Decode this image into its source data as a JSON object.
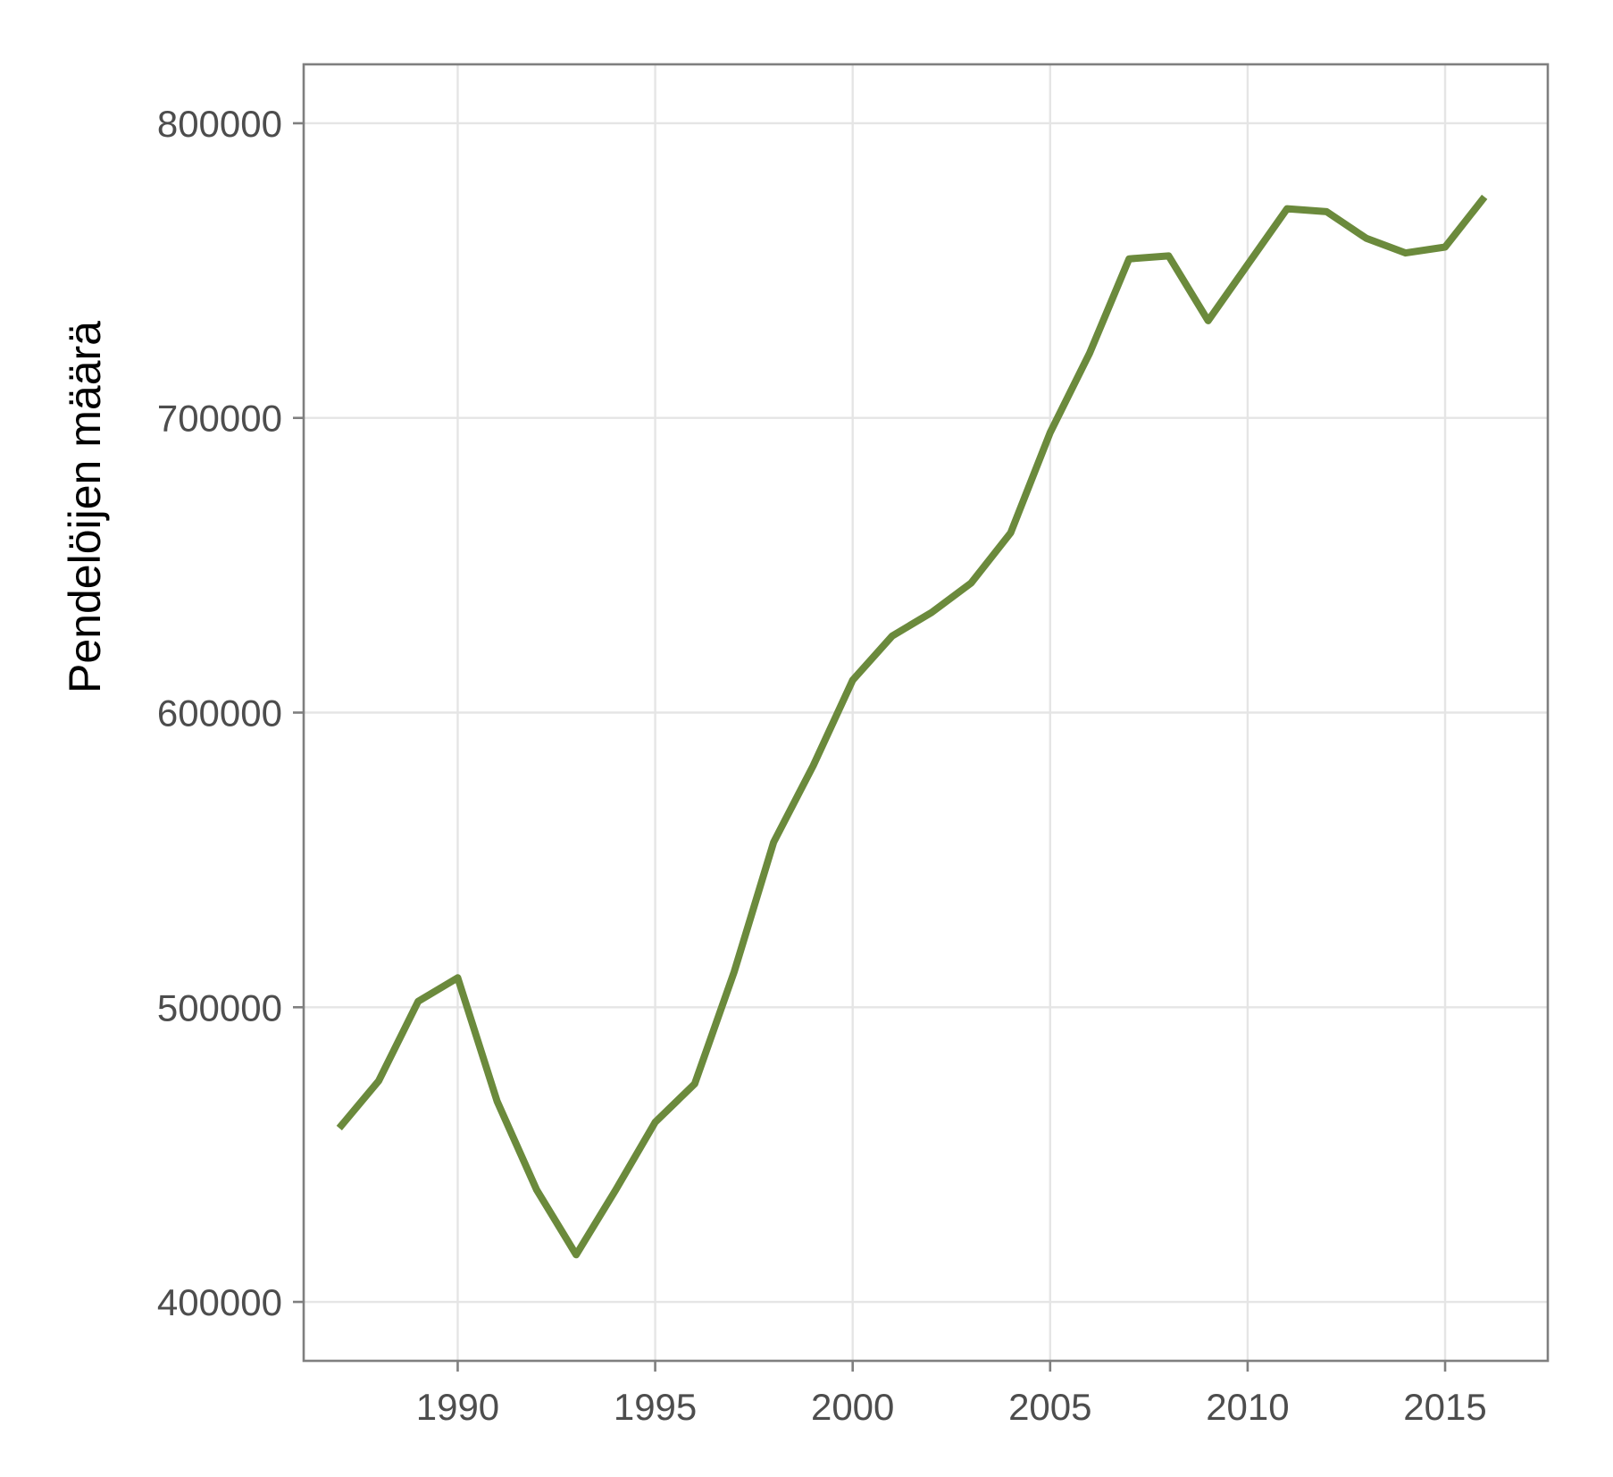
{
  "chart_data": {
    "type": "line",
    "title": "",
    "xlabel": "",
    "ylabel": "Pendelöijen määrä",
    "x": [
      1987,
      1988,
      1989,
      1990,
      1991,
      1992,
      1993,
      1994,
      1995,
      1996,
      1997,
      1998,
      1999,
      2000,
      2001,
      2002,
      2003,
      2004,
      2005,
      2006,
      2007,
      2008,
      2009,
      2010,
      2011,
      2012,
      2013,
      2014,
      2015,
      2016
    ],
    "series": [
      {
        "values": [
          459000,
          475000,
          502000,
          510000,
          468000,
          438000,
          416000,
          438000,
          461000,
          474000,
          512000,
          556000,
          582000,
          611000,
          626000,
          634000,
          644000,
          661000,
          695000,
          722000,
          754000,
          755000,
          733000,
          752000,
          771000,
          770000,
          761000,
          756000,
          758000,
          775000
        ]
      }
    ],
    "xlim": [
      1986.1,
      2017.6
    ],
    "ylim": [
      380000,
      820000
    ],
    "xticks": [
      1990,
      1995,
      2000,
      2005,
      2010,
      2015
    ],
    "yticks": [
      400000,
      500000,
      600000,
      700000,
      800000
    ],
    "xtick_labels": [
      "1990",
      "1995",
      "2000",
      "2005",
      "2010",
      "2015"
    ],
    "ytick_labels": [
      "400000",
      "500000",
      "600000",
      "700000",
      "800000"
    ],
    "grid": true,
    "colors": {
      "line": "#6b8a3c",
      "grid": "#e5e5e5",
      "frame": "#7f7f7f",
      "tick_text": "#4d4d4d"
    }
  }
}
